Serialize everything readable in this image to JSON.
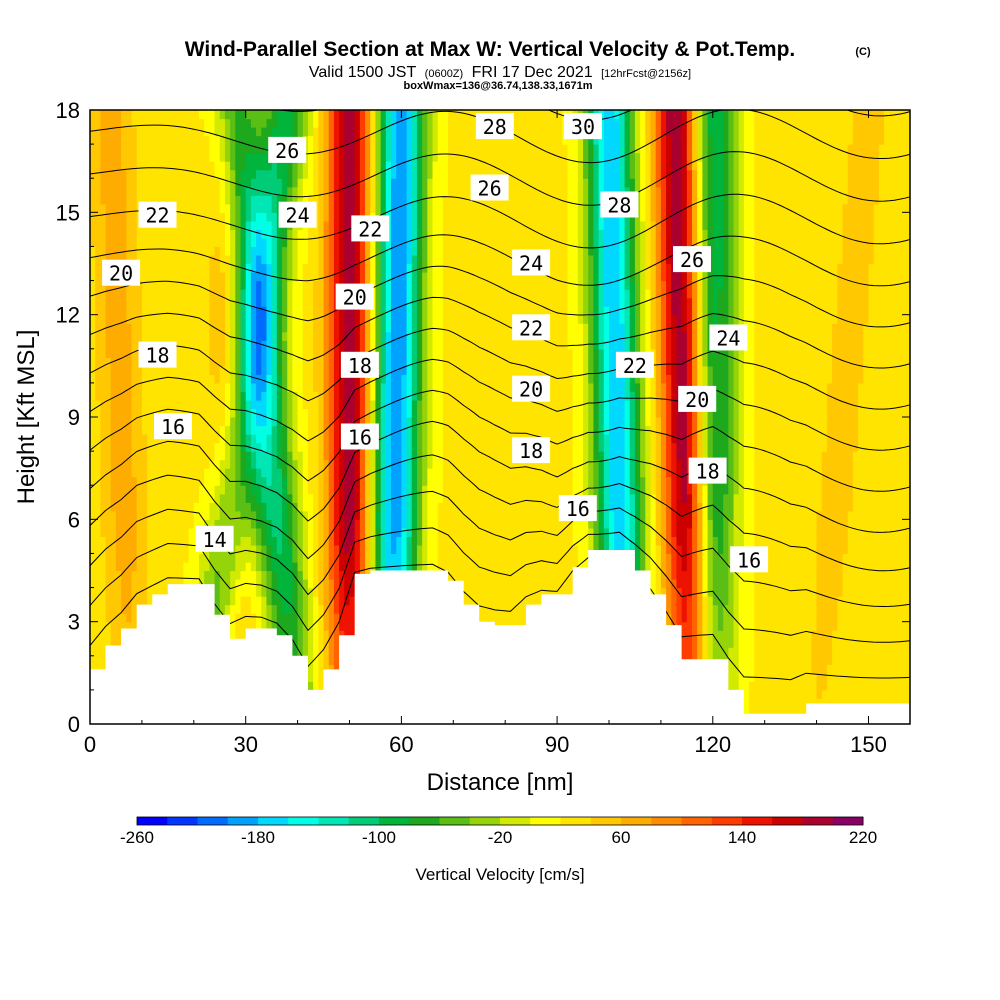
{
  "title": {
    "main": "Wind-Parallel Section at Max W: Vertical Velocity & Pot.Temp.",
    "copyright": "(C)",
    "valid_prefix": "Valid 1500 JST",
    "valid_z": "(0600Z)",
    "valid_date": "FRI 17 Dec 2021",
    "fcst": "[12hrFcst@2156z]",
    "box": "boxWmax=136@36.74,138.33,1671m"
  },
  "colors": {
    "palette": [
      "#0000ff",
      "#0036ff",
      "#006cff",
      "#00a2ff",
      "#00d8ff",
      "#00ffe4",
      "#00e6b4",
      "#00cc78",
      "#00b43c",
      "#1ea81e",
      "#5abe14",
      "#96d40a",
      "#d2ea00",
      "#ffff00",
      "#ffe400",
      "#ffc800",
      "#ffac00",
      "#ff8c00",
      "#ff6400",
      "#ff3c00",
      "#ee1200",
      "#cc0000",
      "#aa0030",
      "#880066",
      "#5a0096"
    ],
    "terrain": "#ffffff",
    "contour": "#000000"
  },
  "chart_data": {
    "type": "heatmap",
    "xlabel": "Distance [nm]",
    "ylabel": "Height [Kft MSL]",
    "xlim": [
      0,
      158
    ],
    "ylim": [
      0,
      18
    ],
    "xticks": [
      0,
      30,
      60,
      90,
      120,
      150
    ],
    "yticks": [
      0,
      3,
      6,
      9,
      12,
      15,
      18
    ],
    "colorbar": {
      "label": "Vertical Velocity [cm/s]",
      "min": -260,
      "max": 220,
      "step": 20,
      "tick_labels": [
        "-260",
        "-180",
        "-100",
        "-20",
        "60",
        "140",
        "220"
      ]
    },
    "vertical_velocity_features": [
      {
        "kind": "updraft",
        "x_base": 50,
        "x_top": 50,
        "peak": 200
      },
      {
        "kind": "downdraft",
        "x_base": 40,
        "x_top": 28,
        "peak": -110
      },
      {
        "kind": "updraft",
        "x_base": 28,
        "x_top": 27,
        "peak": 80
      },
      {
        "kind": "downdraft",
        "x_base": 22,
        "x_top": 38,
        "peak": -90
      },
      {
        "kind": "downdraft",
        "x_base": 58,
        "x_top": 60,
        "peak": -200
      },
      {
        "kind": "updraft",
        "x_base": 84,
        "x_top": 80,
        "peak": 40
      },
      {
        "kind": "downdraft",
        "x_base": 103,
        "x_top": 100,
        "peak": -180
      },
      {
        "kind": "updraft",
        "x_base": 116,
        "x_top": 113,
        "peak": 210
      },
      {
        "kind": "downdraft",
        "x_base": 120,
        "x_top": 120,
        "peak": -100
      },
      {
        "kind": "updraft",
        "x_base": 8,
        "x_top": 4,
        "peak": 70
      },
      {
        "kind": "updraft",
        "x_base": 140,
        "x_top": 150,
        "peak": 50
      }
    ],
    "terrain_profile": {
      "x": [
        0,
        3,
        6,
        9,
        12,
        15,
        18,
        21,
        24,
        27,
        30,
        33,
        36,
        39,
        42,
        45,
        48,
        51,
        54,
        57,
        60,
        63,
        66,
        69,
        72,
        75,
        78,
        81,
        84,
        87,
        90,
        93,
        96,
        99,
        102,
        105,
        108,
        111,
        114,
        117,
        120,
        123,
        126,
        129,
        132,
        135,
        138,
        141,
        144,
        147,
        150,
        153,
        156,
        158
      ],
      "height": [
        1.6,
        2.3,
        2.8,
        3.5,
        3.8,
        4.1,
        4.1,
        4.1,
        3.2,
        2.5,
        2.8,
        2.8,
        2.6,
        2.0,
        1.0,
        1.6,
        2.6,
        4.4,
        4.5,
        4.5,
        4.5,
        4.5,
        4.5,
        4.2,
        3.5,
        3.0,
        2.9,
        2.9,
        3.5,
        3.8,
        3.8,
        4.6,
        5.1,
        5.1,
        5.1,
        4.5,
        3.8,
        2.9,
        1.9,
        1.9,
        1.9,
        1.0,
        0.3,
        0.3,
        0.3,
        0.3,
        0.6,
        0.6,
        0.6,
        0.6,
        0.6,
        0.6,
        0.6,
        0.6
      ]
    },
    "theta_contours": {
      "label_positions": [
        {
          "label": "14",
          "x": 24,
          "y": 5.4
        },
        {
          "label": "16",
          "x": 16,
          "y": 8.7
        },
        {
          "label": "18",
          "x": 13,
          "y": 10.8
        },
        {
          "label": "20",
          "x": 6,
          "y": 13.2
        },
        {
          "label": "22",
          "x": 13,
          "y": 14.9
        },
        {
          "label": "24",
          "x": 40,
          "y": 14.9
        },
        {
          "label": "26",
          "x": 38,
          "y": 16.8
        },
        {
          "label": "16",
          "x": 52,
          "y": 8.4
        },
        {
          "label": "18",
          "x": 52,
          "y": 10.5
        },
        {
          "label": "20",
          "x": 51,
          "y": 12.5
        },
        {
          "label": "22",
          "x": 54,
          "y": 14.5
        },
        {
          "label": "16",
          "x": 94,
          "y": 6.3
        },
        {
          "label": "18",
          "x": 85,
          "y": 8.0
        },
        {
          "label": "20",
          "x": 85,
          "y": 9.8
        },
        {
          "label": "22",
          "x": 85,
          "y": 11.6
        },
        {
          "label": "24",
          "x": 85,
          "y": 13.5
        },
        {
          "label": "26",
          "x": 77,
          "y": 15.7
        },
        {
          "label": "28",
          "x": 78,
          "y": 17.5
        },
        {
          "label": "30",
          "x": 95,
          "y": 17.5
        },
        {
          "label": "28",
          "x": 102,
          "y": 15.2
        },
        {
          "label": "22",
          "x": 105,
          "y": 10.5
        },
        {
          "label": "26",
          "x": 116,
          "y": 13.6
        },
        {
          "label": "24",
          "x": 123,
          "y": 11.3
        },
        {
          "label": "20",
          "x": 117,
          "y": 9.5
        },
        {
          "label": "18",
          "x": 119,
          "y": 7.4
        },
        {
          "label": "16",
          "x": 127,
          "y": 4.8
        }
      ]
    }
  }
}
